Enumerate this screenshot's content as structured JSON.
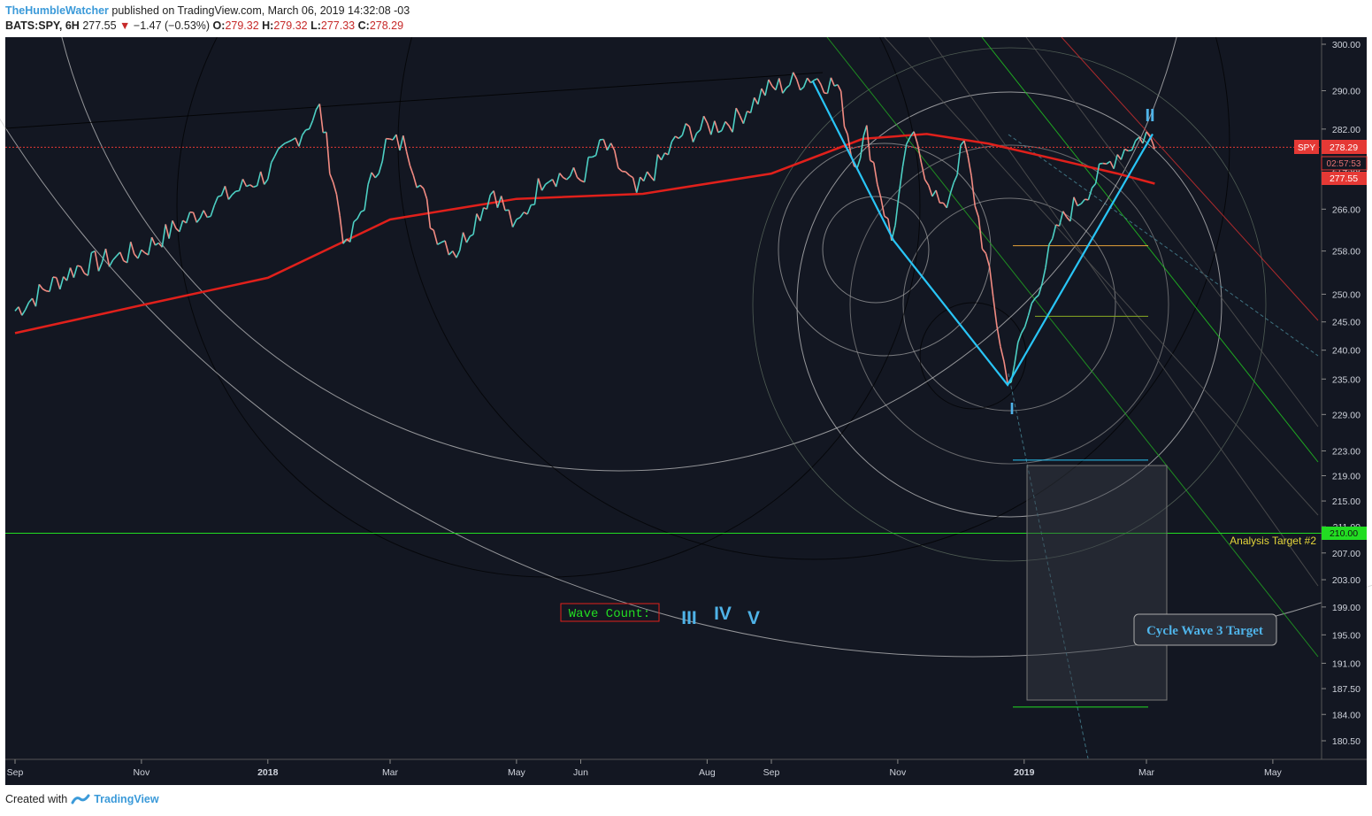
{
  "header": {
    "author": "TheHumbleWatcher",
    "published": "published on TradingView.com, March 06, 2019 14:32:08 -03",
    "symbol": "BATS:SPY, 6H",
    "last": "277.55",
    "change": "−1.47 (−0.53%)",
    "o_label": "O:",
    "o": "279.32",
    "h_label": "H:",
    "h": "279.32",
    "l_label": "L:",
    "l": "277.33",
    "c_label": "C:",
    "c": "278.29"
  },
  "footer": {
    "created_with": "Created with",
    "brand": "TradingView"
  },
  "colors": {
    "background": "#131722",
    "up": "#4dd0c4",
    "down": "#f28b82",
    "ma": "#e0201b",
    "wave": "#29c5f6",
    "target_line": "#22dd22",
    "label_blue": "#4fb3e8"
  },
  "chart_data": {
    "type": "line",
    "title": "",
    "symbol": "SPY",
    "x_tick_labels": [
      "Sep",
      "Nov",
      "2018",
      "Mar",
      "May",
      "Jun",
      "Aug",
      "Sep",
      "Nov",
      "2019",
      "Mar",
      "May"
    ],
    "y_tick_labels": [
      "300.00",
      "290.00",
      "282.00",
      "274.00",
      "266.00",
      "258.00",
      "250.00",
      "245.00",
      "240.00",
      "235.00",
      "229.00",
      "223.00",
      "219.00",
      "215.00",
      "211.00",
      "207.00",
      "203.00",
      "199.00",
      "195.00",
      "191.00",
      "187.50",
      "184.00",
      "180.50"
    ],
    "y_log_scale": true,
    "ylim": [
      178,
      302
    ],
    "price_series": {
      "name": "SPY",
      "x": [
        "2017-09-01",
        "2017-10-01",
        "2017-11-01",
        "2017-12-01",
        "2018-01-01",
        "2018-01-26",
        "2018-02-08",
        "2018-02-27",
        "2018-03-09",
        "2018-03-22",
        "2018-04-02",
        "2018-04-20",
        "2018-05-01",
        "2018-05-15",
        "2018-06-01",
        "2018-06-12",
        "2018-06-28",
        "2018-07-20",
        "2018-08-15",
        "2018-08-29",
        "2018-09-20",
        "2018-10-03",
        "2018-10-11",
        "2018-10-17",
        "2018-10-29",
        "2018-11-07",
        "2018-11-23",
        "2018-12-03",
        "2018-12-24",
        "2019-01-03",
        "2019-01-18",
        "2019-02-01",
        "2019-02-15",
        "2019-03-01",
        "2019-03-05"
      ],
      "y": [
        247,
        255,
        258,
        266,
        273,
        286,
        258,
        279,
        279,
        262,
        258,
        270,
        262,
        273,
        272,
        279,
        269,
        281,
        284,
        290,
        293,
        291,
        275,
        281,
        260,
        281,
        265,
        279,
        234,
        246,
        263,
        270,
        277,
        281,
        278
      ]
    },
    "ma_series": {
      "name": "",
      "x": [
        "2017-09-01",
        "2017-11-01",
        "2018-01-01",
        "2018-03-01",
        "2018-05-01",
        "2018-07-01",
        "2018-09-01",
        "2018-10-15",
        "2018-11-15",
        "2018-12-15",
        "2019-01-15",
        "2019-02-15",
        "2019-03-05"
      ],
      "y": [
        243,
        248,
        253,
        264,
        268,
        269,
        273,
        280,
        281,
        279,
        276,
        273,
        271
      ]
    },
    "wave_lines": [
      {
        "x": [
          "2018-09-21",
          "2018-10-30",
          "2018-12-24",
          "2019-03-04"
        ],
        "y": [
          292,
          260,
          234,
          281
        ]
      }
    ],
    "wave_labels": {
      "wave1": "I",
      "wave2": "II",
      "wave_count_label": "Wave Count:",
      "w3": "III",
      "w4": "IV",
      "w5": "V"
    },
    "annotations": {
      "target2_label": "Analysis Target #2",
      "target2_value": "210.00",
      "target2_price": 210,
      "box_label": "Cycle Wave 3 Target",
      "current_symbol": "SPY",
      "current_price": "278.29",
      "countdown": "02:57:53",
      "last_price": "277.55"
    }
  }
}
